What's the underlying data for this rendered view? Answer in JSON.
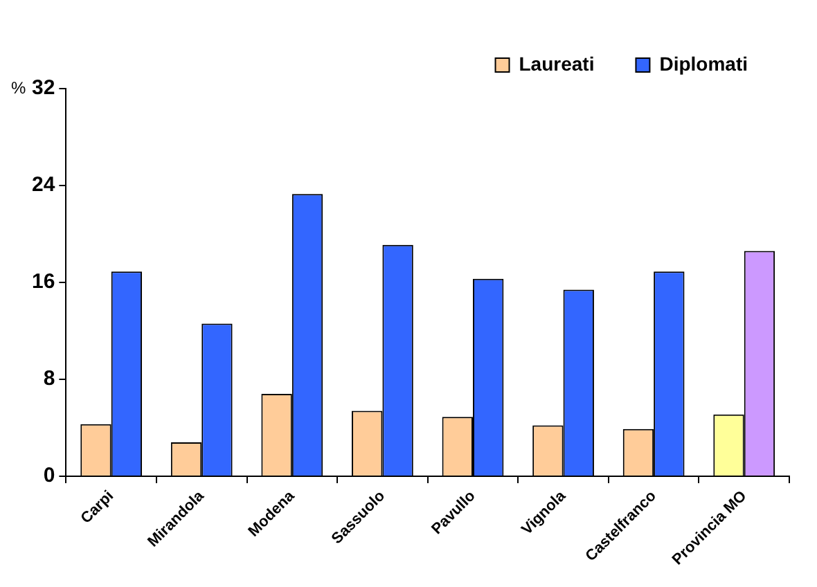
{
  "chart_data": {
    "type": "bar",
    "ylabel": "%",
    "categories": [
      "Carpi",
      "Mirandola",
      "Modena",
      "Sassuolo",
      "Pavullo",
      "Vignola",
      "Castelfranco",
      "Provincia MO"
    ],
    "series": [
      {
        "name": "Laureati",
        "color": "#ffcc99",
        "colors": [
          "#ffcc99",
          "#ffcc99",
          "#ffcc99",
          "#ffcc99",
          "#ffcc99",
          "#ffcc99",
          "#ffcc99",
          "#ffff99"
        ],
        "values": [
          4.3,
          2.8,
          6.8,
          5.4,
          4.9,
          4.2,
          3.9,
          5.1
        ]
      },
      {
        "name": "Diplomati",
        "color": "#3366ff",
        "colors": [
          "#3366ff",
          "#3366ff",
          "#3366ff",
          "#3366ff",
          "#3366ff",
          "#3366ff",
          "#3366ff",
          "#cc99ff"
        ],
        "values": [
          16.9,
          12.6,
          23.3,
          19.1,
          16.3,
          15.4,
          16.9,
          18.6
        ]
      }
    ],
    "ylim": [
      0,
      32
    ],
    "yticks": [
      0,
      8,
      16,
      24,
      32
    ],
    "legend": "top right"
  }
}
